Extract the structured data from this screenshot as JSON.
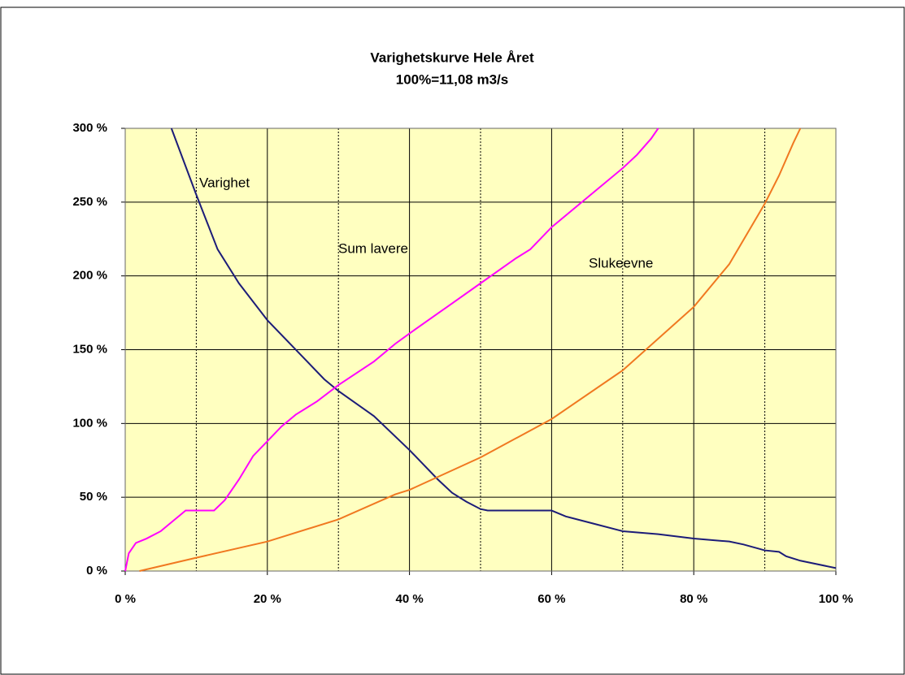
{
  "chart_data": {
    "type": "line",
    "title": "Varighetskurve Hele Året",
    "subtitle": "100%=11,08 m3/s",
    "xlim": [
      0,
      100
    ],
    "ylim": [
      0,
      300
    ],
    "xticks": [
      {
        "value": 0,
        "label": "0 %"
      },
      {
        "value": 20,
        "label": "20 %"
      },
      {
        "value": 40,
        "label": "40 %"
      },
      {
        "value": 60,
        "label": "60 %"
      },
      {
        "value": 80,
        "label": "80 %"
      },
      {
        "value": 100,
        "label": "100 %"
      }
    ],
    "xminorticks": [
      10,
      30,
      50,
      70,
      90
    ],
    "yticks": [
      {
        "value": 0,
        "label": "0 %"
      },
      {
        "value": 50,
        "label": "50 %"
      },
      {
        "value": 100,
        "label": "100 %"
      },
      {
        "value": 150,
        "label": "150 %"
      },
      {
        "value": 200,
        "label": "200 %"
      },
      {
        "value": 250,
        "label": "250 %"
      },
      {
        "value": 300,
        "label": "300 %"
      }
    ],
    "grid": true,
    "plot_background": "#ffffc0",
    "series": [
      {
        "name": "Varighet",
        "color": "#1c1c78",
        "x": [
          6.5,
          10,
          13,
          16,
          20,
          25,
          28,
          30,
          35,
          40,
          42,
          44,
          46,
          48,
          50,
          51,
          60,
          62,
          66,
          70,
          75,
          80,
          85,
          87,
          90,
          92,
          93,
          95,
          100
        ],
        "values": [
          300,
          255,
          218,
          195,
          170,
          145,
          130,
          122,
          105,
          82,
          72,
          62,
          53,
          47,
          42,
          41,
          41,
          37,
          32,
          27,
          25,
          22,
          20,
          18,
          14,
          13,
          10,
          7,
          2
        ]
      },
      {
        "name": "Sum lavere",
        "color": "#ff00ff",
        "x": [
          0,
          0.5,
          1.5,
          3,
          5,
          7,
          8.5,
          10,
          12.5,
          14,
          16,
          18,
          20,
          22,
          24,
          27,
          30,
          35,
          38,
          40,
          45,
          50,
          55,
          57,
          60,
          65,
          70,
          72,
          74,
          75
        ],
        "values": [
          0,
          12,
          19,
          22,
          27,
          35,
          41,
          41,
          41,
          48,
          62,
          78,
          88,
          98,
          106,
          115,
          126,
          142,
          154,
          161,
          178,
          195,
          212,
          218,
          233,
          253,
          273,
          282,
          293,
          300
        ]
      },
      {
        "name": "Slukeevne",
        "color": "#f07820",
        "x": [
          2,
          10,
          20,
          30,
          38,
          40,
          50,
          60,
          70,
          80,
          85,
          90,
          92,
          94,
          95
        ],
        "values": [
          0,
          9,
          20,
          35,
          52,
          55,
          77,
          103,
          136,
          179,
          208,
          249,
          268,
          290,
          300
        ]
      }
    ]
  }
}
